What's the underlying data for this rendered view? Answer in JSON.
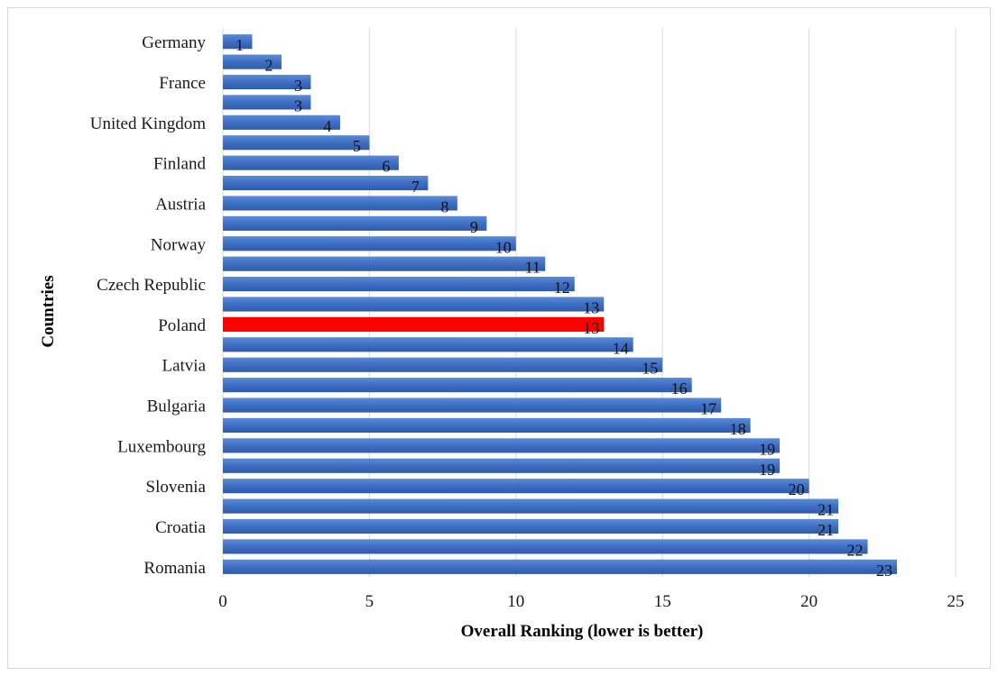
{
  "chart_data": {
    "type": "bar",
    "orientation": "horizontal",
    "title": "",
    "xlabel": "Overall Ranking (lower is better)",
    "ylabel": "Countries",
    "xlim": [
      0,
      25
    ],
    "x_ticks": [
      "0",
      "5",
      "10",
      "15",
      "20",
      "25"
    ],
    "grid": "vertical",
    "categories": [
      "Germany",
      "",
      "France",
      "",
      "United Kingdom",
      "",
      "Finland",
      "",
      "Austria",
      "",
      "Norway",
      "",
      "Czech Republic",
      "",
      "Poland",
      "",
      "Latvia",
      "",
      "Bulgaria",
      "",
      "Luxembourg",
      "",
      "Slovenia",
      "",
      "Croatia",
      "",
      "Romania"
    ],
    "values": [
      1,
      2,
      3,
      3,
      4,
      5,
      6,
      7,
      8,
      9,
      10,
      11,
      12,
      13,
      13,
      14,
      15,
      16,
      17,
      18,
      19,
      19,
      20,
      21,
      21,
      22,
      23
    ],
    "data_labels": [
      "1",
      "2",
      "3",
      "3",
      "4",
      "5",
      "6",
      "7",
      "8",
      "9",
      "10",
      "11",
      "12",
      "13",
      "13",
      "14",
      "15",
      "16",
      "17",
      "18",
      "19",
      "19",
      "20",
      "21",
      "21",
      "22",
      "23"
    ],
    "bar_color": "#4472C4",
    "highlight_color": "#FF0000",
    "highlight_category": "Poland"
  }
}
